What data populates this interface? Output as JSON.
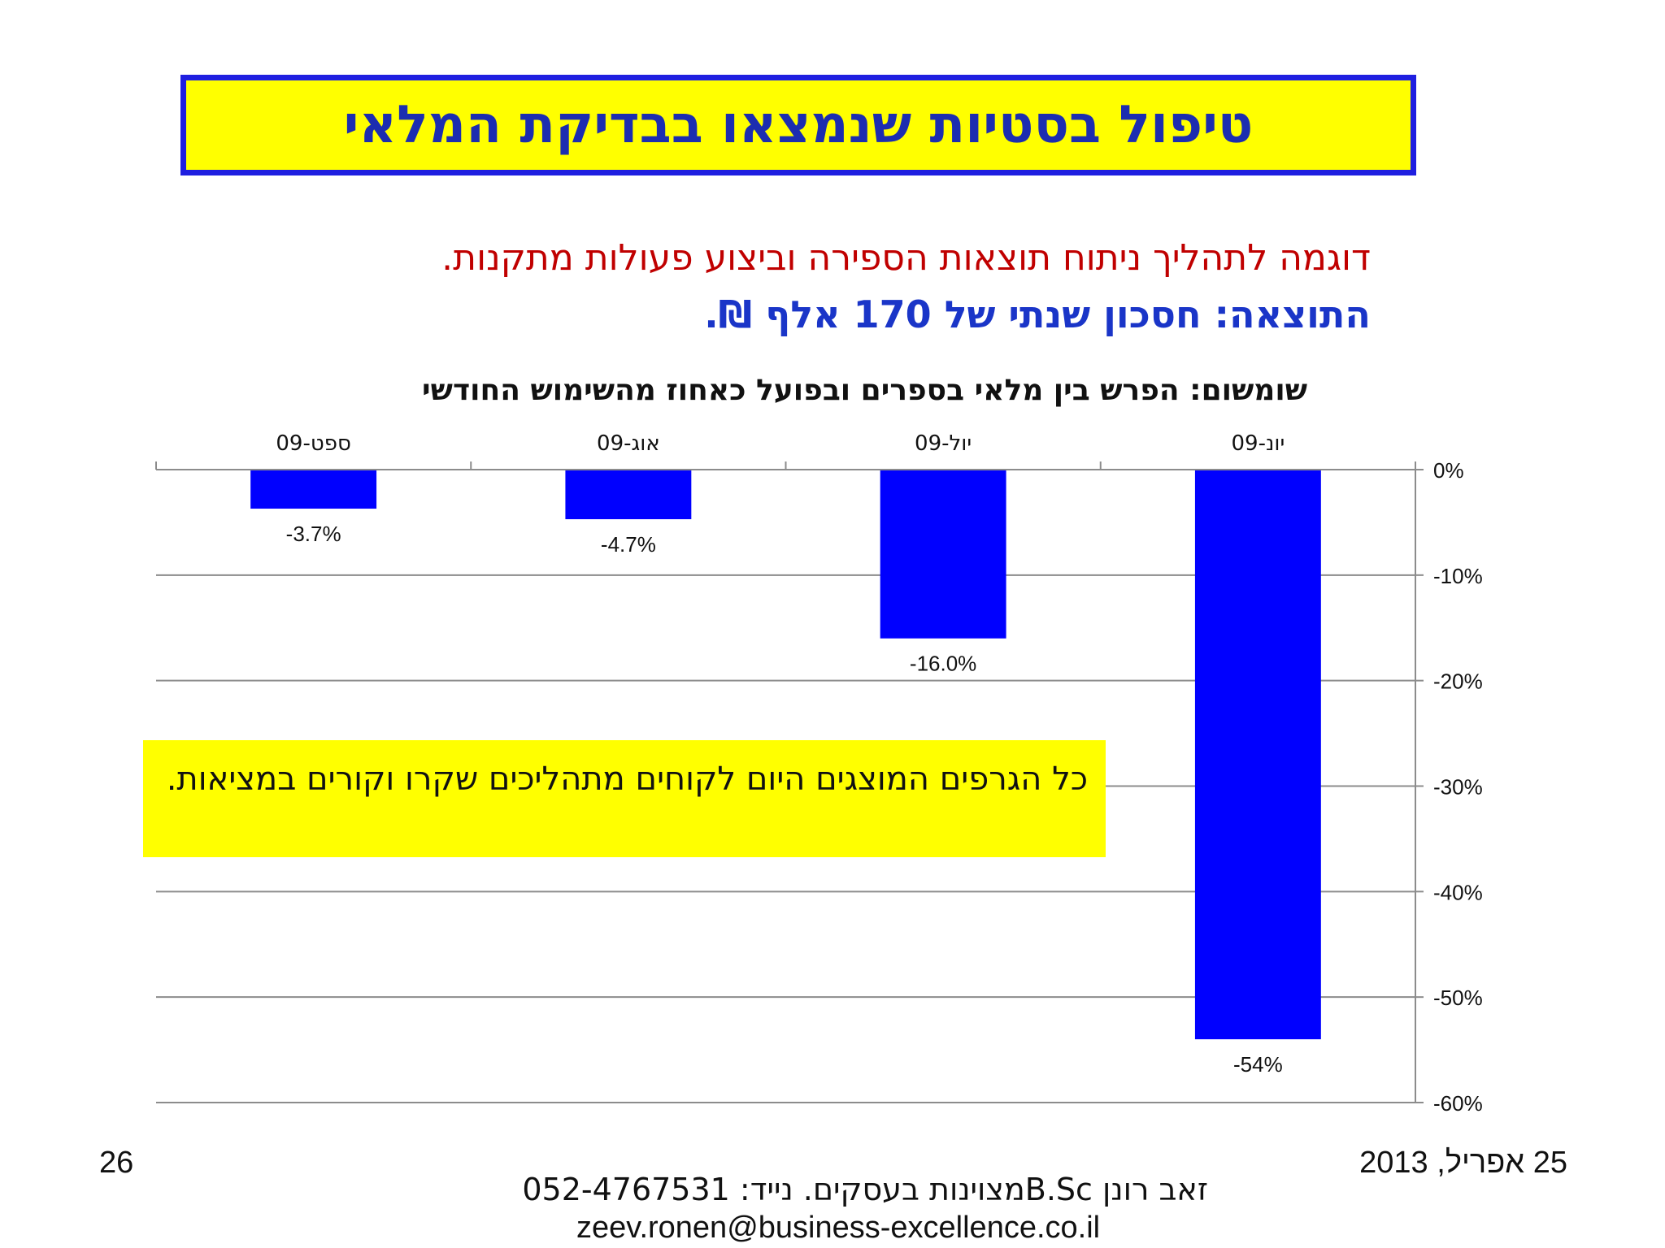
{
  "header": {
    "title": "טיפול בסטיות שנמצאו בבדיקת המלאי"
  },
  "intro": {
    "line1": "דוגמה לתהליך ניתוח תוצאות הספירה וביצוע פעולות מתקנות.",
    "line2": "התוצאה: חסכון שנתי של 170 אלף ₪."
  },
  "chart_data": {
    "type": "bar",
    "title": "שומשום: הפרש בין מלאי בספרים ובפועל כאחוז מהשימוש החודשי",
    "categories": [
      "יונ-09",
      "יול-09",
      "אוג-09",
      "ספט-09"
    ],
    "values": [
      -54,
      -16.0,
      -4.7,
      -3.7
    ],
    "data_labels": [
      "-54%",
      "-16.0%",
      "-4.7%",
      "-3.7%"
    ],
    "ylim": [
      -60,
      0
    ],
    "yticks": [
      0,
      -10,
      -20,
      -30,
      -40,
      -50,
      -60
    ],
    "ytick_labels": [
      "0%",
      "-10%",
      "-20%",
      "-30%",
      "-40%",
      "-50%",
      "-60%"
    ],
    "x_axis_position": "top",
    "y_axis_position": "right",
    "category_order": "right-to-left",
    "grid": true,
    "bar_color": "#0000ff"
  },
  "note": {
    "text": "כל הגרפים המוצגים היום לקוחים מתהליכים שקרו וקורים במציאות."
  },
  "footer": {
    "date": "25 אפריל, 2013",
    "page": "26",
    "author_line": "זאב רונן      B.Scמצוינות בעסקים.  נייד: 052-4767531",
    "email": "zeev.ronen@business-excellence.co.il"
  }
}
